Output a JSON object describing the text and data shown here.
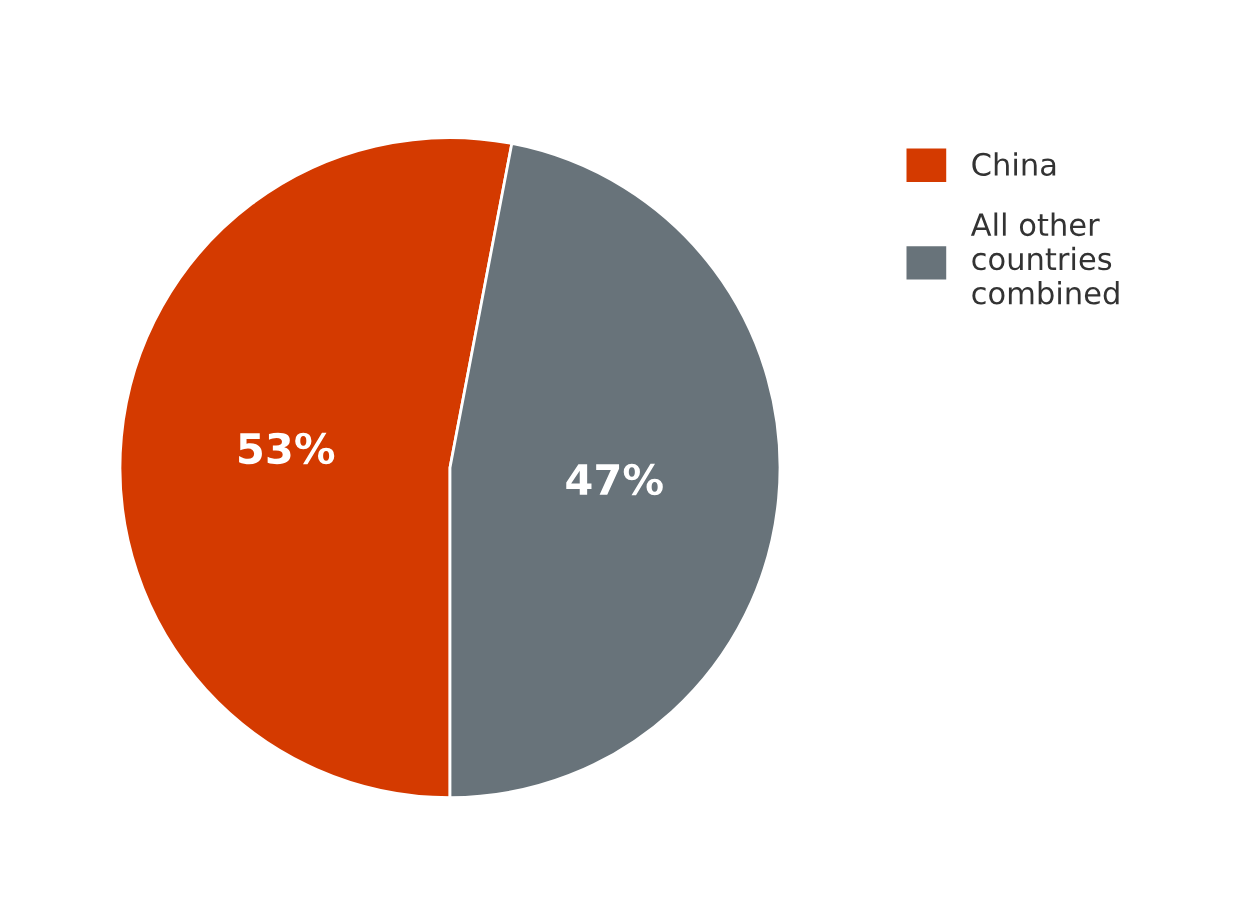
{
  "chart_data": {
    "type": "pie",
    "categories": [
      "China",
      "All other\ncountries\ncombined"
    ],
    "values": [
      53,
      47
    ],
    "colors": [
      "#d43a00",
      "#68737a"
    ],
    "value_labels": [
      "53%",
      "47%"
    ],
    "legend": "right"
  }
}
